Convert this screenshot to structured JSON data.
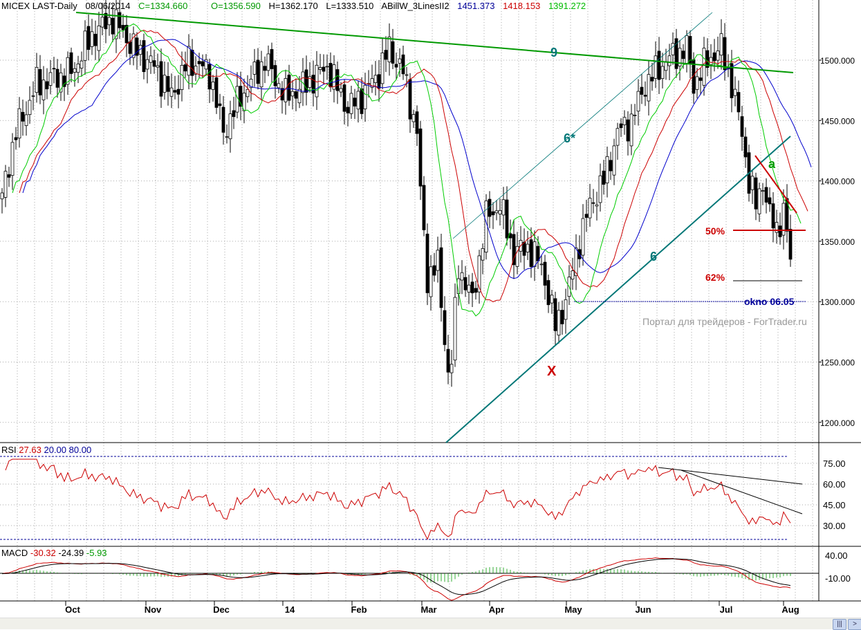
{
  "header": {
    "symbol": "MICEX LAST-Daily",
    "date": "08/06/2014",
    "close": "C=1334.660",
    "open": "O=1356.590",
    "high": "H=1362.170",
    "low": "L=1333.510",
    "indicator": "ABillW_3LinesII2",
    "ind_blue": "1451.373",
    "ind_red": "1418.153",
    "ind_green": "1391.272"
  },
  "rsi": {
    "label": "RSI",
    "value": "27.63",
    "low": "20.00",
    "high": "80.00",
    "ticks": [
      "75.00",
      "60.00",
      "45.00",
      "30.00"
    ]
  },
  "macd": {
    "label": "MACD",
    "macd": "-30.32",
    "signal": "-24.39",
    "hist": "-5.93",
    "ticks": [
      "40.00",
      "-10.00"
    ]
  },
  "annotations": {
    "l9": "9",
    "l6s": "6*",
    "l6": "6",
    "x": "X",
    "a": "a",
    "p50": "50%",
    "p62": "62%",
    "okno": "okno 06.05",
    "watermark": "Портал для трейдеров - ForTrader.ru"
  },
  "colors": {
    "green": "#009900",
    "red": "#cc0000",
    "blue": "#000099",
    "teal": "#007777",
    "lime": "#00cc00"
  },
  "chart_data": {
    "type": "candlestick",
    "title": "MICEX LAST-Daily",
    "price_ticks": [
      "1500.000",
      "1450.000",
      "1400.000",
      "1350.000",
      "1300.000",
      "1250.000",
      "1200.000"
    ],
    "ylim": [
      1180,
      1545
    ],
    "months": [
      "Oct",
      "Nov",
      "Dec",
      "14",
      "Feb",
      "Mar",
      "Apr",
      "May",
      "Jun",
      "Jul",
      "Aug"
    ],
    "close_knots": [
      [
        0,
        1390
      ],
      [
        4,
        1440
      ],
      [
        10,
        1480
      ],
      [
        20,
        1490
      ],
      [
        26,
        1520
      ],
      [
        32,
        1535
      ],
      [
        38,
        1510
      ],
      [
        44,
        1495
      ],
      [
        49,
        1470
      ],
      [
        54,
        1500
      ],
      [
        60,
        1490
      ],
      [
        64,
        1440
      ],
      [
        69,
        1470
      ],
      [
        76,
        1500
      ],
      [
        82,
        1470
      ],
      [
        88,
        1480
      ],
      [
        94,
        1495
      ],
      [
        100,
        1460
      ],
      [
        104,
        1470
      ],
      [
        109,
        1490
      ],
      [
        112,
        1510
      ],
      [
        116,
        1490
      ],
      [
        120,
        1440
      ],
      [
        121,
        1390
      ],
      [
        123,
        1320
      ],
      [
        126,
        1330
      ],
      [
        129,
        1240
      ],
      [
        130,
        1250
      ],
      [
        132,
        1330
      ],
      [
        136,
        1300
      ],
      [
        140,
        1370
      ],
      [
        144,
        1380
      ],
      [
        148,
        1340
      ],
      [
        152,
        1345
      ],
      [
        156,
        1330
      ],
      [
        160,
        1280
      ],
      [
        163,
        1300
      ],
      [
        166,
        1340
      ],
      [
        170,
        1380
      ],
      [
        174,
        1400
      ],
      [
        178,
        1440
      ],
      [
        182,
        1450
      ],
      [
        186,
        1480
      ],
      [
        192,
        1500
      ],
      [
        198,
        1510
      ],
      [
        200,
        1480
      ],
      [
        204,
        1500
      ],
      [
        208,
        1510
      ],
      [
        211,
        1480
      ],
      [
        214,
        1440
      ],
      [
        216,
        1400
      ],
      [
        218,
        1380
      ],
      [
        220,
        1400
      ],
      [
        222,
        1370
      ],
      [
        224,
        1360
      ],
      [
        226,
        1375
      ],
      [
        228,
        1335
      ]
    ]
  }
}
